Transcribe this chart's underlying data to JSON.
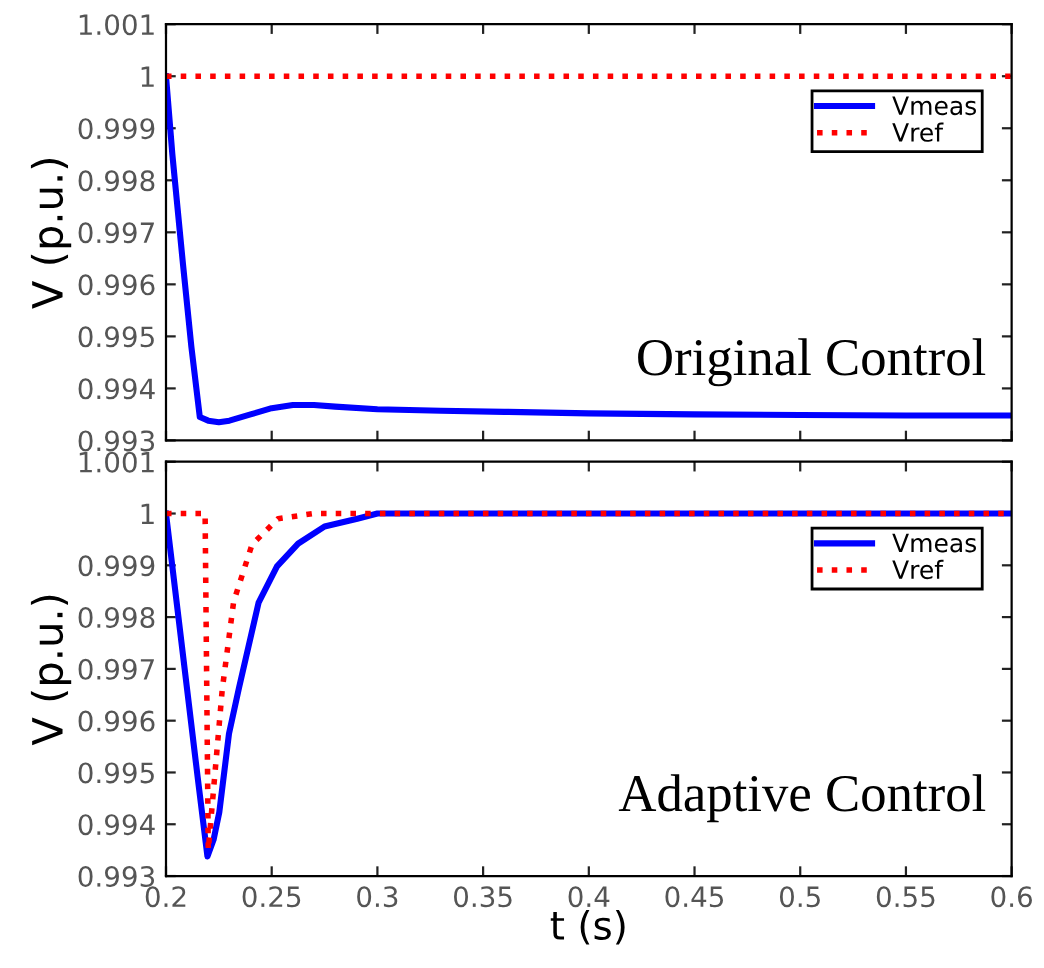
{
  "chart_data": [
    {
      "type": "line",
      "ylabel": "V (p.u.)",
      "annotations": [
        "Original Control"
      ],
      "xlim": [
        0.2,
        0.6
      ],
      "xticks": [
        0.2,
        0.25,
        0.3,
        0.35,
        0.4,
        0.45,
        0.5,
        0.55,
        0.6
      ],
      "ylim": [
        0.993,
        1.001
      ],
      "yticks": [
        0.993,
        0.994,
        0.995,
        0.996,
        0.997,
        0.998,
        0.999,
        1,
        1.001
      ],
      "tick_labels": "y",
      "grid": false,
      "legend": "top right",
      "series": [
        {
          "name": "Vmeas",
          "color": "#0000ff",
          "line_style": "solid",
          "x": [
            0.2,
            0.203,
            0.208,
            0.212,
            0.216,
            0.22,
            0.225,
            0.23,
            0.24,
            0.25,
            0.26,
            0.27,
            0.28,
            0.3,
            0.33,
            0.36,
            0.4,
            0.45,
            0.5,
            0.55,
            0.6
          ],
          "values": [
            1.0,
            0.9985,
            0.9964,
            0.9948,
            0.99345,
            0.99338,
            0.99335,
            0.99338,
            0.9935,
            0.99362,
            0.99368,
            0.99368,
            0.99365,
            0.9936,
            0.99357,
            0.99355,
            0.99352,
            0.9935,
            0.99349,
            0.99348,
            0.99348
          ]
        },
        {
          "name": "Vref",
          "color": "#ff0000",
          "line_style": "dotted",
          "x": [
            0.2,
            0.6
          ],
          "values": [
            1.0,
            1.0
          ]
        }
      ]
    },
    {
      "type": "line",
      "xlabel": "t (s)",
      "ylabel": "V (p.u.)",
      "annotations": [
        "Adaptive Control"
      ],
      "xlim": [
        0.2,
        0.6
      ],
      "xticks": [
        0.2,
        0.25,
        0.3,
        0.35,
        0.4,
        0.45,
        0.5,
        0.55,
        0.6
      ],
      "ylim": [
        0.993,
        1.001
      ],
      "yticks": [
        0.993,
        0.994,
        0.995,
        0.996,
        0.997,
        0.998,
        0.999,
        1,
        1.001
      ],
      "grid": false,
      "legend": "top right",
      "series": [
        {
          "name": "Vmeas",
          "color": "#0000ff",
          "line_style": "solid",
          "x": [
            0.2,
            0.205,
            0.21,
            0.215,
            0.2196,
            0.2225,
            0.2252,
            0.2298,
            0.2345,
            0.2438,
            0.2525,
            0.2625,
            0.275,
            0.2905,
            0.3,
            0.35,
            0.4,
            0.5,
            0.6
          ],
          "values": [
            1.0,
            0.9983,
            0.9966,
            0.9949,
            0.99338,
            0.9937,
            0.99423,
            0.99575,
            0.99663,
            0.99828,
            0.99898,
            0.99942,
            0.99975,
            0.9999,
            1.0,
            1.0,
            1.0,
            1.0,
            1.0
          ]
        },
        {
          "name": "Vref",
          "color": "#ff0000",
          "line_style": "dotted",
          "x": [
            0.2,
            0.2185,
            0.22,
            0.2266,
            0.232,
            0.2407,
            0.253,
            0.27,
            0.6
          ],
          "values": [
            1.0,
            1.0,
            0.9935,
            0.9966,
            0.9983,
            0.9994,
            0.9999,
            1.0,
            1.0
          ]
        }
      ]
    }
  ]
}
